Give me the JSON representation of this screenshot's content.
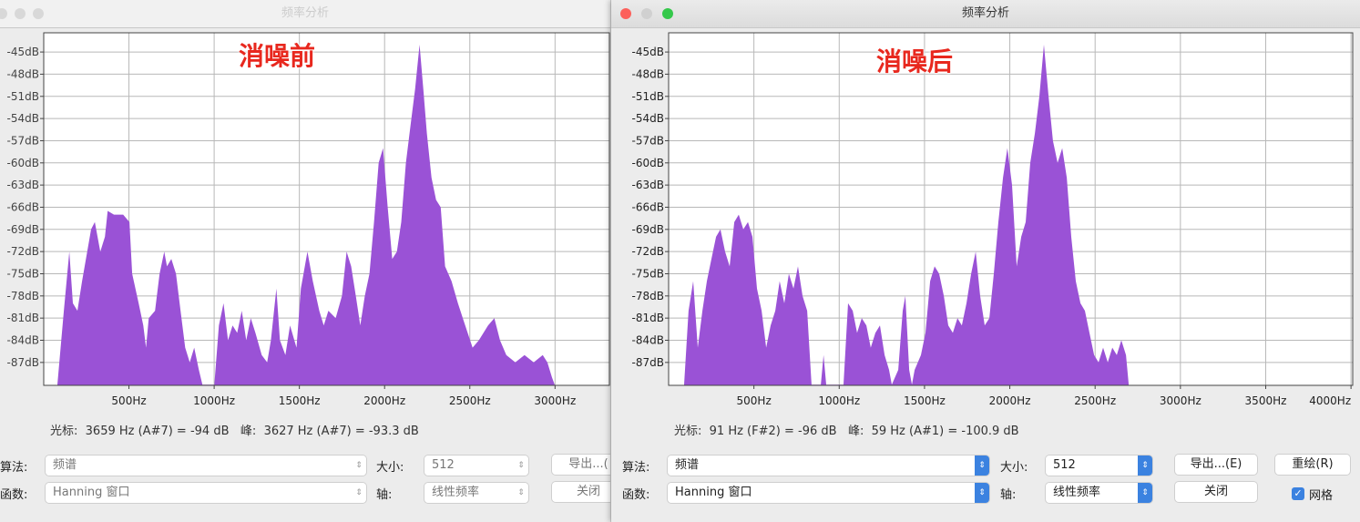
{
  "colors": {
    "fill": "#9a52d6",
    "grid": "#b8b8b8",
    "note": "#e8281e",
    "accent": "#3b82e0"
  },
  "windows": [
    {
      "title": "频率分析",
      "note": "消噪前",
      "status": {
        "cursor_label": "光标:",
        "cursor_value": "3659 Hz (A#7) = -94 dB",
        "peak_label": "峰:",
        "peak_value": "3627 Hz (A#7) = -93.3 dB"
      },
      "controls": {
        "algorithm_label": "算法:",
        "algorithm_value": "频谱",
        "function_label": "函数:",
        "function_value": "Hanning 窗口",
        "size_label": "大小:",
        "size_value": "512",
        "axis_label": "轴:",
        "axis_value": "线性频率",
        "export_label": "导出...(",
        "close_label": "关闭"
      },
      "chart_data": {
        "type": "area",
        "xlabel": "",
        "ylabel": "",
        "grid": true,
        "xlim": [
          0,
          3319
        ],
        "ylim": [
          -90.1,
          -42.4
        ],
        "xticks": [
          500,
          1000,
          1500,
          2000,
          2500,
          3000
        ],
        "xtick_labels": [
          "500Hz",
          "1000Hz",
          "1500Hz",
          "2000Hz",
          "2500Hz",
          "3000Hz"
        ],
        "yticks": [
          -45,
          -48,
          -51,
          -54,
          -57,
          -60,
          -63,
          -66,
          -69,
          -72,
          -75,
          -78,
          -81,
          -84,
          -87
        ],
        "ytick_labels": [
          "-45dB",
          "-48dB",
          "-51dB",
          "-54dB",
          "-57dB",
          "-60dB",
          "-63dB",
          "-66dB",
          "-69dB",
          "-72dB",
          "-75dB",
          "-78dB",
          "-81dB",
          "-84dB",
          "-87dB"
        ],
        "points": [
          [
            80,
            -90
          ],
          [
            118,
            -80
          ],
          [
            150,
            -72
          ],
          [
            171,
            -79
          ],
          [
            198,
            -80
          ],
          [
            225,
            -76
          ],
          [
            278,
            -69
          ],
          [
            300,
            -68
          ],
          [
            332,
            -72
          ],
          [
            359,
            -70
          ],
          [
            375,
            -66.5
          ],
          [
            412,
            -67
          ],
          [
            466,
            -67
          ],
          [
            503,
            -68
          ],
          [
            519,
            -75
          ],
          [
            557,
            -79
          ],
          [
            584,
            -82
          ],
          [
            600,
            -85
          ],
          [
            616,
            -81
          ],
          [
            653,
            -80
          ],
          [
            680,
            -75
          ],
          [
            707,
            -72
          ],
          [
            723,
            -74
          ],
          [
            749,
            -73
          ],
          [
            776,
            -75
          ],
          [
            803,
            -80
          ],
          [
            830,
            -85
          ],
          [
            857,
            -87
          ],
          [
            883,
            -85
          ],
          [
            910,
            -88
          ],
          [
            931,
            -90
          ],
          [
            1001,
            -90
          ],
          [
            1028,
            -82
          ],
          [
            1055,
            -79
          ],
          [
            1081,
            -84
          ],
          [
            1108,
            -82
          ],
          [
            1135,
            -83
          ],
          [
            1162,
            -80
          ],
          [
            1188,
            -84
          ],
          [
            1215,
            -81
          ],
          [
            1242,
            -83
          ],
          [
            1279,
            -86
          ],
          [
            1311,
            -87
          ],
          [
            1333,
            -84
          ],
          [
            1365,
            -77
          ],
          [
            1386,
            -84
          ],
          [
            1418,
            -86
          ],
          [
            1445,
            -82
          ],
          [
            1483,
            -85
          ],
          [
            1509,
            -77
          ],
          [
            1547,
            -72
          ],
          [
            1579,
            -76
          ],
          [
            1617,
            -80
          ],
          [
            1643,
            -82
          ],
          [
            1670,
            -80
          ],
          [
            1713,
            -81
          ],
          [
            1750,
            -78
          ],
          [
            1777,
            -72
          ],
          [
            1804,
            -74
          ],
          [
            1831,
            -78
          ],
          [
            1857,
            -82
          ],
          [
            1884,
            -78
          ],
          [
            1911,
            -75
          ],
          [
            1938,
            -68
          ],
          [
            1965,
            -60
          ],
          [
            1991,
            -58
          ],
          [
            2018,
            -66
          ],
          [
            2045,
            -73
          ],
          [
            2072,
            -72
          ],
          [
            2098,
            -68
          ],
          [
            2125,
            -60
          ],
          [
            2152,
            -55
          ],
          [
            2179,
            -50
          ],
          [
            2205,
            -44
          ],
          [
            2227,
            -50
          ],
          [
            2248,
            -56
          ],
          [
            2275,
            -62
          ],
          [
            2302,
            -65
          ],
          [
            2329,
            -66
          ],
          [
            2355,
            -74
          ],
          [
            2393,
            -76
          ],
          [
            2430,
            -79
          ],
          [
            2473,
            -82
          ],
          [
            2516,
            -85
          ],
          [
            2553,
            -84
          ],
          [
            2607,
            -82
          ],
          [
            2644,
            -81
          ],
          [
            2677,
            -84
          ],
          [
            2714,
            -86
          ],
          [
            2767,
            -87
          ],
          [
            2821,
            -86
          ],
          [
            2875,
            -87
          ],
          [
            2928,
            -86
          ],
          [
            2955,
            -87
          ],
          [
            2982,
            -89
          ],
          [
            2998,
            -90
          ]
        ]
      }
    },
    {
      "title": "频率分析",
      "note": "消噪后",
      "status": {
        "cursor_label": "光标:",
        "cursor_value": "91 Hz (F#2) = -96 dB",
        "peak_label": "峰:",
        "peak_value": "59 Hz (A#1) = -100.9 dB"
      },
      "controls": {
        "algorithm_label": "算法:",
        "algorithm_value": "频谱",
        "function_label": "函数:",
        "function_value": "Hanning 窗口",
        "size_label": "大小:",
        "size_value": "512",
        "axis_label": "轴:",
        "axis_value": "线性频率",
        "export_label": "导出...(E)",
        "redraw_label": "重绘(R)",
        "close_label": "关闭",
        "grid_label": "网格",
        "grid_checked": true
      },
      "chart_data": {
        "type": "area",
        "xlabel": "",
        "ylabel": "",
        "grid": true,
        "xlim": [
          0,
          4010
        ],
        "ylim": [
          -90.1,
          -42.4
        ],
        "xticks": [
          500,
          1000,
          1500,
          2000,
          2500,
          3000,
          3500,
          4000
        ],
        "xtick_labels": [
          "500Hz",
          "1000Hz",
          "1500Hz",
          "2000Hz",
          "2500Hz",
          "3000Hz",
          "3500Hz",
          "4000Hz"
        ],
        "yticks": [
          -45,
          -48,
          -51,
          -54,
          -57,
          -60,
          -63,
          -66,
          -69,
          -72,
          -75,
          -78,
          -81,
          -84,
          -87
        ],
        "ytick_labels": [
          "-45dB",
          "-48dB",
          "-51dB",
          "-54dB",
          "-57dB",
          "-60dB",
          "-63dB",
          "-66dB",
          "-69dB",
          "-72dB",
          "-75dB",
          "-78dB",
          "-81dB",
          "-84dB",
          "-87dB"
        ],
        "points": [
          [
            91,
            -90
          ],
          [
            117,
            -80
          ],
          [
            144,
            -76
          ],
          [
            171,
            -85
          ],
          [
            198,
            -80
          ],
          [
            224,
            -76
          ],
          [
            251,
            -73
          ],
          [
            278,
            -70
          ],
          [
            304,
            -69
          ],
          [
            331,
            -72
          ],
          [
            358,
            -74
          ],
          [
            385,
            -68
          ],
          [
            411,
            -67
          ],
          [
            438,
            -69
          ],
          [
            465,
            -68
          ],
          [
            491,
            -70
          ],
          [
            518,
            -77
          ],
          [
            545,
            -80
          ],
          [
            572,
            -85
          ],
          [
            598,
            -82
          ],
          [
            625,
            -80
          ],
          [
            651,
            -76
          ],
          [
            678,
            -79
          ],
          [
            705,
            -75
          ],
          [
            732,
            -77
          ],
          [
            758,
            -74
          ],
          [
            785,
            -78
          ],
          [
            812,
            -80
          ],
          [
            838,
            -90
          ],
          [
            892,
            -90
          ],
          [
            908,
            -86
          ],
          [
            924,
            -90
          ],
          [
            1025,
            -90
          ],
          [
            1052,
            -79
          ],
          [
            1079,
            -80
          ],
          [
            1105,
            -83
          ],
          [
            1132,
            -81
          ],
          [
            1159,
            -82
          ],
          [
            1185,
            -85
          ],
          [
            1212,
            -83
          ],
          [
            1239,
            -82
          ],
          [
            1266,
            -86
          ],
          [
            1292,
            -88
          ],
          [
            1308,
            -90
          ],
          [
            1346,
            -88
          ],
          [
            1372,
            -80
          ],
          [
            1388,
            -78
          ],
          [
            1410,
            -88
          ],
          [
            1426,
            -90
          ],
          [
            1442,
            -88
          ],
          [
            1479,
            -86
          ],
          [
            1506,
            -83
          ],
          [
            1533,
            -76
          ],
          [
            1559,
            -74
          ],
          [
            1586,
            -75
          ],
          [
            1613,
            -78
          ],
          [
            1639,
            -82
          ],
          [
            1666,
            -83
          ],
          [
            1693,
            -81
          ],
          [
            1719,
            -82
          ],
          [
            1746,
            -79
          ],
          [
            1773,
            -75
          ],
          [
            1800,
            -72
          ],
          [
            1826,
            -78
          ],
          [
            1853,
            -82
          ],
          [
            1880,
            -81
          ],
          [
            1906,
            -75
          ],
          [
            1933,
            -68
          ],
          [
            1960,
            -62
          ],
          [
            1986,
            -58
          ],
          [
            2013,
            -63
          ],
          [
            2040,
            -74
          ],
          [
            2067,
            -70
          ],
          [
            2093,
            -68
          ],
          [
            2120,
            -60
          ],
          [
            2147,
            -56
          ],
          [
            2173,
            -51
          ],
          [
            2200,
            -44
          ],
          [
            2227,
            -51
          ],
          [
            2253,
            -57
          ],
          [
            2280,
            -60
          ],
          [
            2307,
            -58
          ],
          [
            2334,
            -62
          ],
          [
            2360,
            -70
          ],
          [
            2387,
            -76
          ],
          [
            2414,
            -79
          ],
          [
            2440,
            -80
          ],
          [
            2467,
            -83
          ],
          [
            2494,
            -86
          ],
          [
            2520,
            -87
          ],
          [
            2547,
            -85
          ],
          [
            2574,
            -87
          ],
          [
            2601,
            -85
          ],
          [
            2627,
            -86
          ],
          [
            2654,
            -84
          ],
          [
            2681,
            -86
          ],
          [
            2697,
            -90
          ]
        ]
      }
    }
  ]
}
